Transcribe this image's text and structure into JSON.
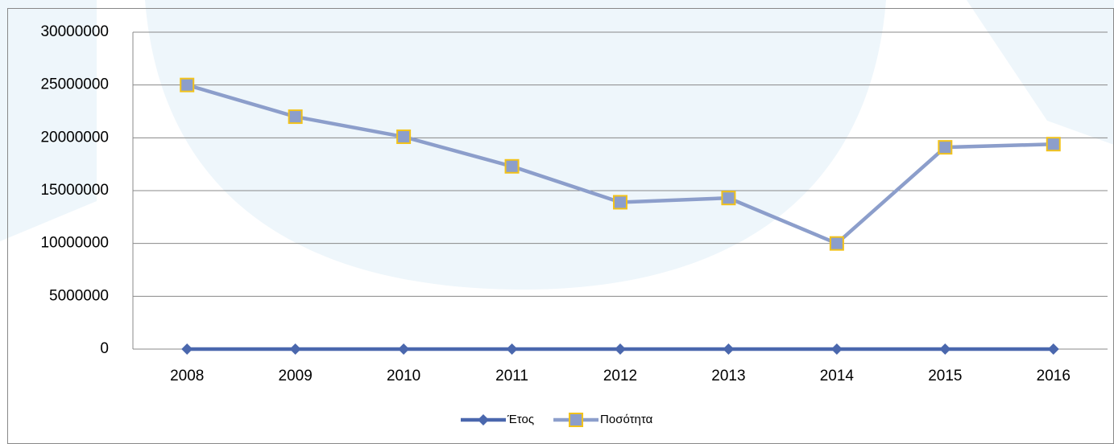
{
  "chart_data": {
    "type": "line",
    "categories": [
      "2008",
      "2009",
      "2010",
      "2011",
      "2012",
      "2013",
      "2014",
      "2015",
      "2016"
    ],
    "series": [
      {
        "name": "Έτος",
        "color": "#4a67ad",
        "marker": "diamond",
        "values": [
          2008,
          2009,
          2010,
          2011,
          2012,
          2013,
          2014,
          2015,
          2016
        ]
      },
      {
        "name": "Ποσότητα",
        "color": "#8c9ecb",
        "marker": "square",
        "values": [
          25000000,
          22000000,
          20100000,
          17300000,
          13900000,
          14300000,
          10000000,
          19100000,
          19400000
        ]
      }
    ],
    "ylim": [
      0,
      30000000
    ],
    "yticks": [
      0,
      5000000,
      10000000,
      15000000,
      20000000,
      25000000,
      30000000
    ],
    "grid": true,
    "legend": "bottom"
  }
}
